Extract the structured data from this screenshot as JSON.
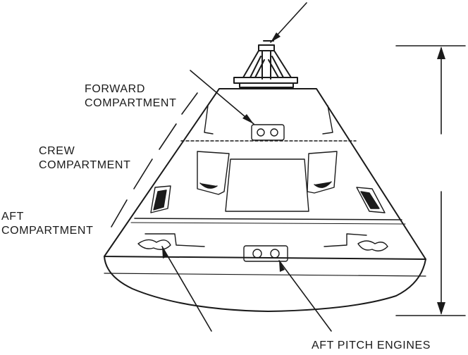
{
  "labels": {
    "forward_compartment": [
      "FORWARD",
      "COMPARTMENT"
    ],
    "crew_compartment": [
      "CREW",
      "COMPARTMENT"
    ],
    "aft_compartment": [
      "AFT",
      "COMPARTMENT"
    ],
    "aft_pitch_engines": "AFT PITCH ENGINES"
  },
  "colors": {
    "ink": "#1a1a1a",
    "paper": "#ffffff"
  }
}
